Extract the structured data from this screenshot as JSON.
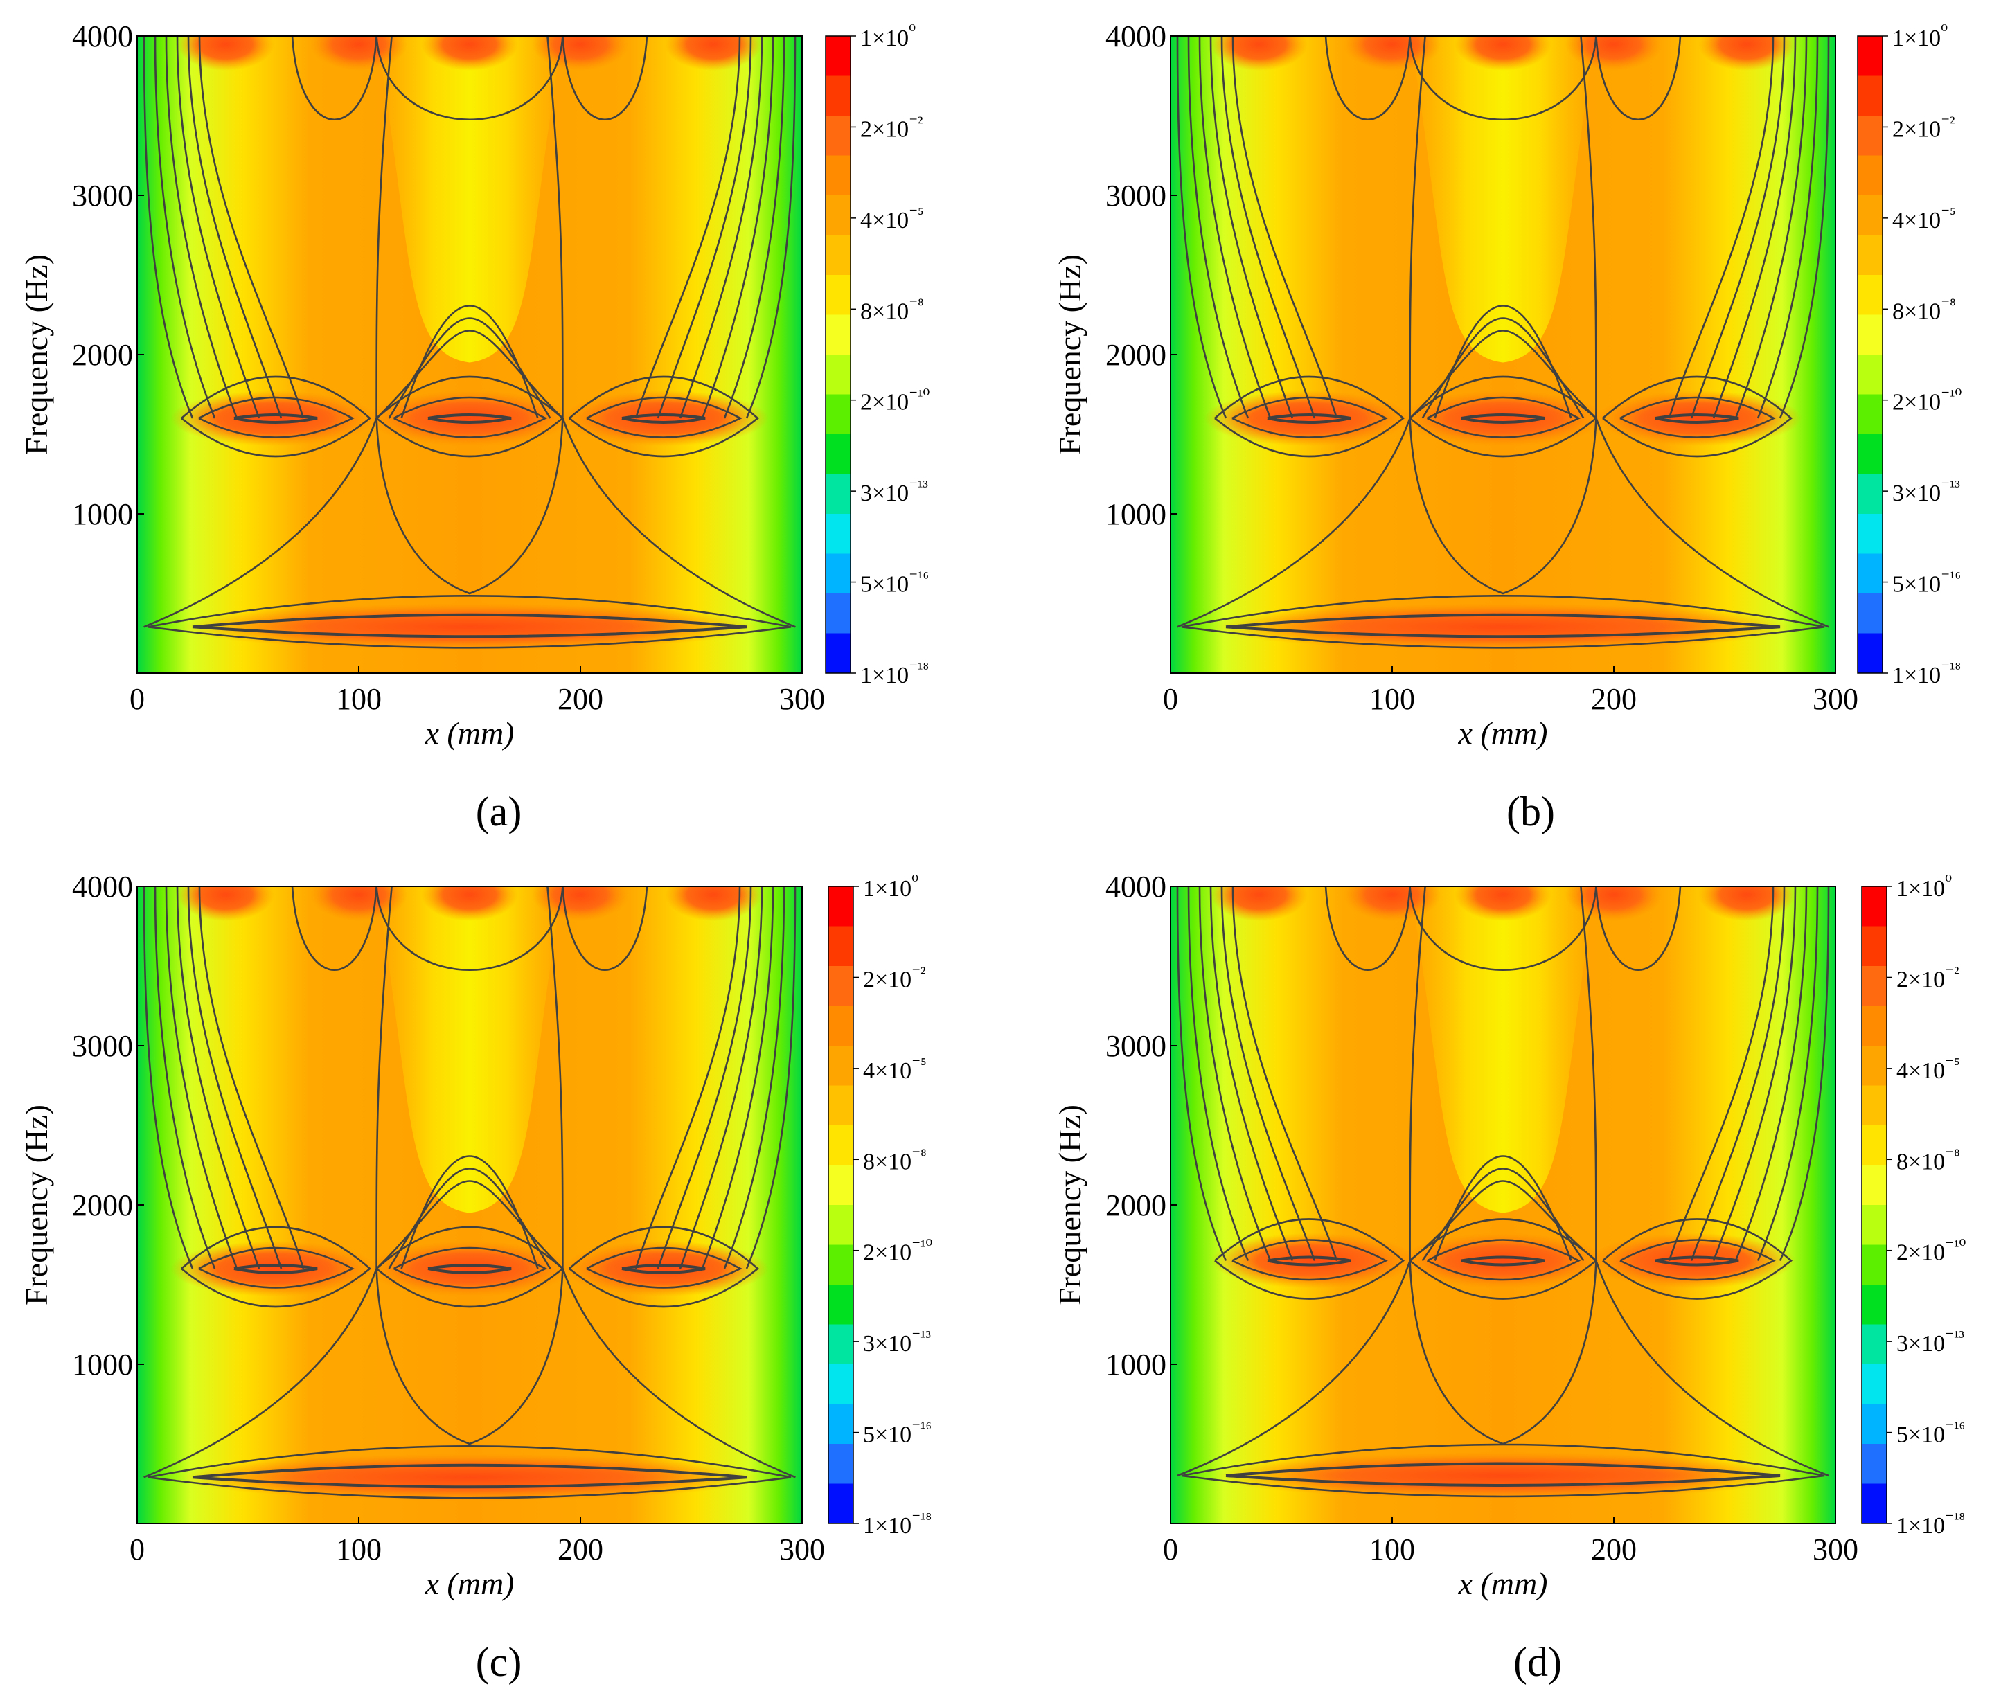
{
  "figure": {
    "panels": [
      {
        "label_text": "(a)",
        "letter": "a"
      },
      {
        "label_text": "(b)",
        "letter": "b"
      },
      {
        "label_text": "(c)",
        "letter": "c"
      },
      {
        "label_text": "(d)",
        "letter": "d"
      }
    ]
  },
  "colors": {
    "colorbar_stops": [
      "#ff0000",
      "#ff3a00",
      "#ff6a10",
      "#ff8c00",
      "#ffa500",
      "#ffc100",
      "#ffe400",
      "#f5ff20",
      "#b8ff10",
      "#5cf000",
      "#00e020",
      "#00e6a0",
      "#00e5ee",
      "#00b4ff",
      "#2070ff",
      "#0010ff"
    ],
    "contour_line": "#404040"
  },
  "chart_data": [
    {
      "type": "heatmap",
      "panel": "a",
      "title": "(a)",
      "xlabel": "x (mm)",
      "ylabel": "Frequency (Hz)",
      "xlim": [
        0,
        300
      ],
      "ylim": [
        0,
        4000
      ],
      "xticks": [
        "0",
        "100",
        "200",
        "300"
      ],
      "yticks": [
        "1000",
        "2000",
        "3000",
        "4000"
      ],
      "colorbar": {
        "scale": "log",
        "range": [
          1e-18,
          1
        ],
        "ticks": [
          "1×10⁰",
          "2×10⁻²",
          "4×10⁻⁵",
          "8×10⁻⁸",
          "2×10⁻¹⁰",
          "3×10⁻¹³",
          "5×10⁻¹⁶",
          "1×10⁻¹⁸"
        ]
      },
      "resonances_hz": [
        290,
        1600,
        4000
      ],
      "resonances_x_mm": [
        [
          150
        ],
        [
          62,
          150,
          238
        ],
        [
          40,
          100,
          150,
          200,
          260
        ]
      ],
      "nodal_lines_x_mm": [
        0,
        108,
        192,
        300
      ]
    },
    {
      "type": "heatmap",
      "panel": "b",
      "title": "(b)",
      "xlabel": "x (mm)",
      "ylabel": "Frequency (Hz)",
      "xlim": [
        0,
        300
      ],
      "ylim": [
        0,
        4000
      ],
      "xticks": [
        "0",
        "100",
        "200",
        "300"
      ],
      "yticks": [
        "1000",
        "2000",
        "3000",
        "4000"
      ],
      "colorbar": {
        "scale": "log",
        "range": [
          1e-18,
          1
        ],
        "ticks": [
          "1×10⁰",
          "2×10⁻²",
          "4×10⁻⁵",
          "8×10⁻⁸",
          "2×10⁻¹⁰",
          "3×10⁻¹³",
          "5×10⁻¹⁶",
          "1×10⁻¹⁸"
        ]
      },
      "resonances_hz": [
        290,
        1600,
        4000
      ],
      "resonances_x_mm": [
        [
          150
        ],
        [
          62,
          150,
          238
        ],
        [
          40,
          100,
          150,
          200,
          260
        ]
      ],
      "nodal_lines_x_mm": [
        0,
        108,
        192,
        300
      ]
    },
    {
      "type": "heatmap",
      "panel": "c",
      "title": "(c)",
      "xlabel": "x (mm)",
      "ylabel": "Frequency (Hz)",
      "xlim": [
        0,
        300
      ],
      "ylim": [
        0,
        4000
      ],
      "xticks": [
        "0",
        "100",
        "200",
        "300"
      ],
      "yticks": [
        "1000",
        "2000",
        "3000",
        "4000"
      ],
      "colorbar": {
        "scale": "log",
        "range": [
          1e-18,
          1
        ],
        "ticks": [
          "1×10⁰",
          "2×10⁻²",
          "4×10⁻⁵",
          "8×10⁻⁸",
          "2×10⁻¹⁰",
          "3×10⁻¹³",
          "5×10⁻¹⁶",
          "1×10⁻¹⁸"
        ]
      },
      "resonances_hz": [
        290,
        1600,
        4000
      ],
      "resonances_x_mm": [
        [
          150
        ],
        [
          62,
          150,
          238
        ],
        [
          40,
          100,
          150,
          200,
          260
        ]
      ],
      "nodal_lines_x_mm": [
        0,
        108,
        192,
        300
      ]
    },
    {
      "type": "heatmap",
      "panel": "d",
      "title": "(d)",
      "xlabel": "x (mm)",
      "ylabel": "Frequency (Hz)",
      "xlim": [
        0,
        300
      ],
      "ylim": [
        0,
        4000
      ],
      "xticks": [
        "0",
        "100",
        "200",
        "300"
      ],
      "yticks": [
        "1000",
        "2000",
        "3000",
        "4000"
      ],
      "colorbar": {
        "scale": "log",
        "range": [
          1e-18,
          1
        ],
        "ticks": [
          "1×10⁰",
          "2×10⁻²",
          "4×10⁻⁵",
          "8×10⁻⁸",
          "2×10⁻¹⁰",
          "3×10⁻¹³",
          "5×10⁻¹⁶",
          "1×10⁻¹⁸"
        ]
      },
      "resonances_hz": [
        300,
        1650,
        4000
      ],
      "resonances_x_mm": [
        [
          150
        ],
        [
          65,
          150,
          235
        ],
        [
          40,
          100,
          150,
          200,
          260
        ]
      ],
      "nodal_lines_x_mm": [
        0,
        108,
        192,
        300
      ]
    }
  ]
}
